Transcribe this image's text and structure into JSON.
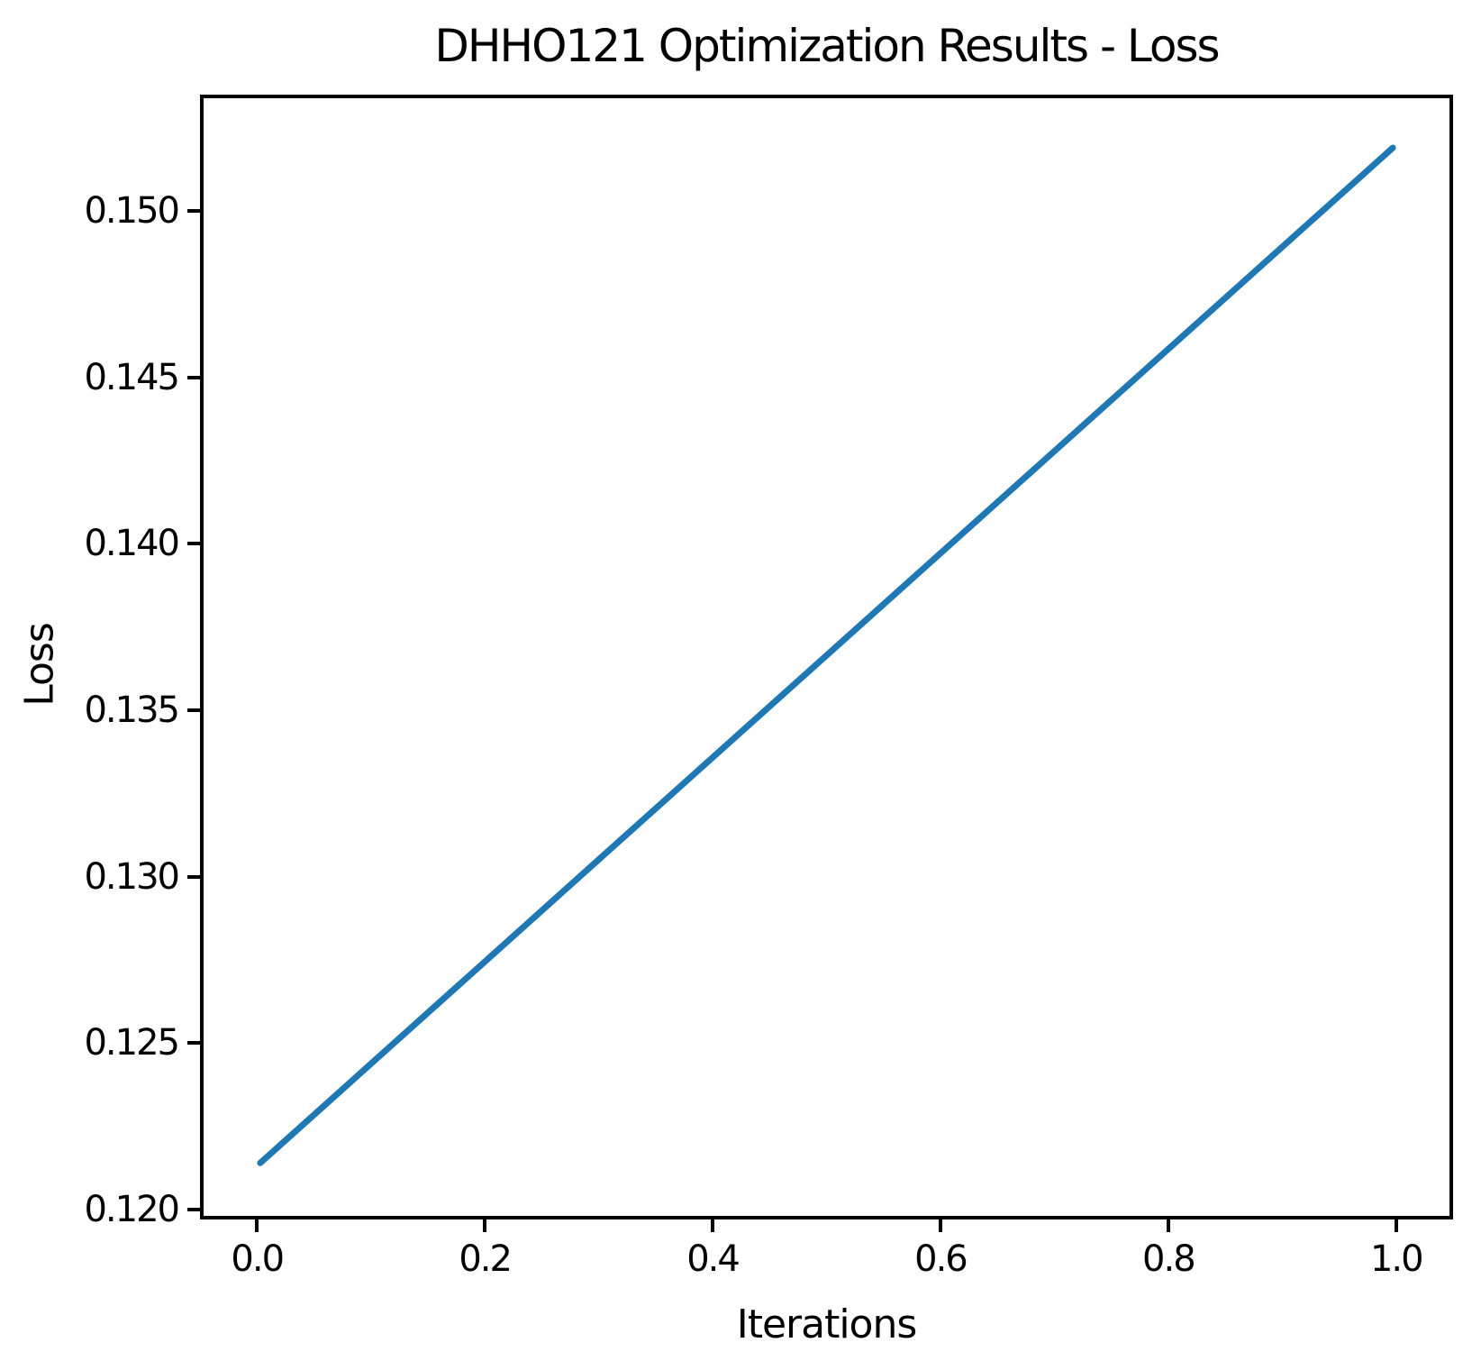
{
  "title": "DHHO121 Optimization Results - Loss",
  "chart_data": {
    "type": "line",
    "title": "DHHO121 Optimization Results - Loss",
    "xlabel": "Iterations",
    "ylabel": "Loss",
    "x": [
      0.0,
      1.0
    ],
    "series": [
      {
        "name": "Loss",
        "values": [
          0.1213,
          0.152
        ],
        "color": "#1f77b4"
      }
    ],
    "xlim": [
      -0.05,
      1.05
    ],
    "ylim": [
      0.1197,
      0.1535
    ],
    "xticks": [
      {
        "value": 0.0,
        "label": "0.0"
      },
      {
        "value": 0.2,
        "label": "0.2"
      },
      {
        "value": 0.4,
        "label": "0.4"
      },
      {
        "value": 0.6,
        "label": "0.6"
      },
      {
        "value": 0.8,
        "label": "0.8"
      },
      {
        "value": 1.0,
        "label": "1.0"
      }
    ],
    "yticks": [
      {
        "value": 0.12,
        "label": "0.120"
      },
      {
        "value": 0.125,
        "label": "0.125"
      },
      {
        "value": 0.13,
        "label": "0.130"
      },
      {
        "value": 0.135,
        "label": "0.135"
      },
      {
        "value": 0.14,
        "label": "0.140"
      },
      {
        "value": 0.145,
        "label": "0.145"
      },
      {
        "value": 0.15,
        "label": "0.150"
      }
    ],
    "grid": false,
    "legend": null,
    "colors": {
      "line": "#1f77b4",
      "spine": "#000000",
      "background": "#ffffff",
      "text": "#000000"
    }
  }
}
